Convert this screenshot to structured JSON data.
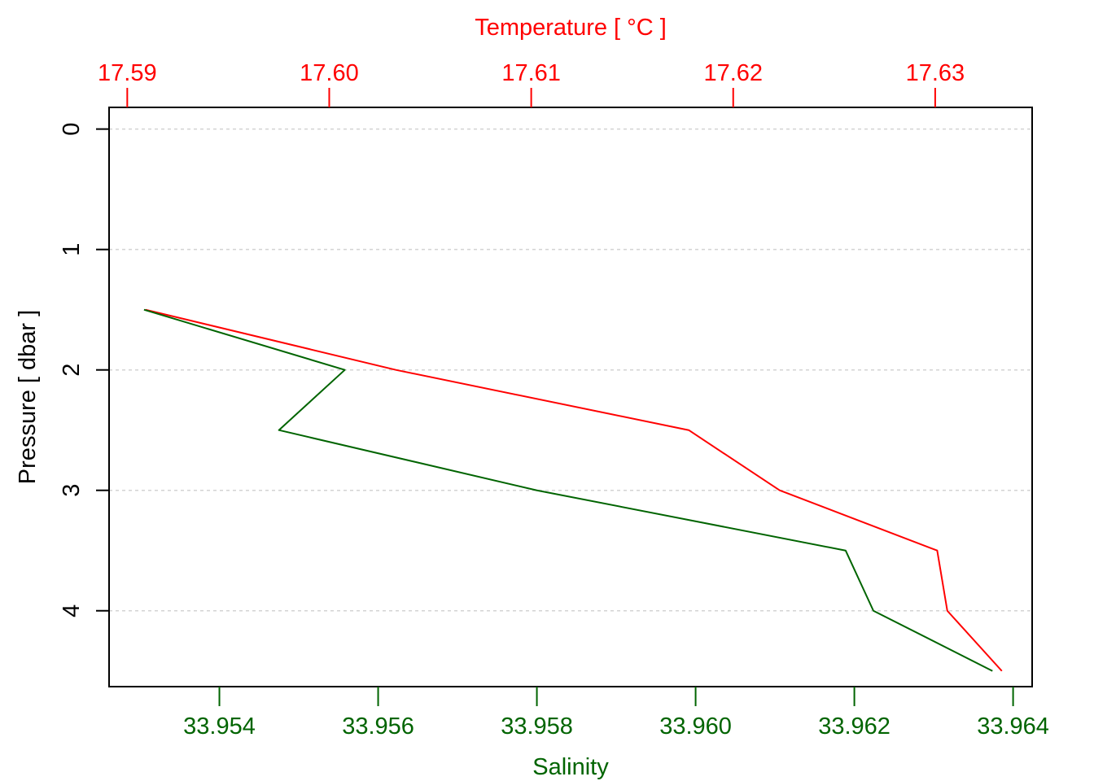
{
  "chart_data": {
    "type": "line",
    "plot_kind": "ctd-profile",
    "y_axis": {
      "label": "Pressure [ dbar ]",
      "ticks": [
        0,
        1,
        2,
        3,
        4
      ],
      "ylim": [
        4.63,
        -0.18
      ],
      "reversed": true,
      "grid": true
    },
    "temperature_axis": {
      "label": "Temperature [ °C ]",
      "position": "top",
      "color": "#ff0000",
      "ticks": [
        "17.59",
        "17.60",
        "17.61",
        "17.62",
        "17.63"
      ],
      "tick_values": [
        17.59,
        17.6,
        17.61,
        17.62,
        17.63
      ],
      "xlim": [
        17.5891,
        17.6348
      ]
    },
    "salinity_axis": {
      "label": "Salinity",
      "position": "bottom",
      "color": "#006400",
      "ticks": [
        "33.954",
        "33.956",
        "33.958",
        "33.960",
        "33.962",
        "33.964"
      ],
      "tick_values": [
        33.954,
        33.956,
        33.958,
        33.96,
        33.962,
        33.964
      ],
      "xlim": [
        33.95261,
        33.96424
      ]
    },
    "series": [
      {
        "name": "Temperature",
        "axis": "temperature",
        "color": "#ff0000",
        "pressure": [
          1.5,
          2.0,
          2.5,
          3.0,
          3.5,
          4.0,
          4.5
        ],
        "values": [
          17.5909,
          17.6033,
          17.6178,
          17.6223,
          17.6301,
          17.6306,
          17.6333
        ]
      },
      {
        "name": "Salinity",
        "axis": "salinity",
        "color": "#006400",
        "pressure": [
          1.5,
          2.0,
          2.5,
          3.0,
          3.5,
          4.0,
          4.5
        ],
        "values": [
          33.95305,
          33.95558,
          33.95475,
          33.958,
          33.96189,
          33.96224,
          33.96374
        ]
      }
    ]
  }
}
